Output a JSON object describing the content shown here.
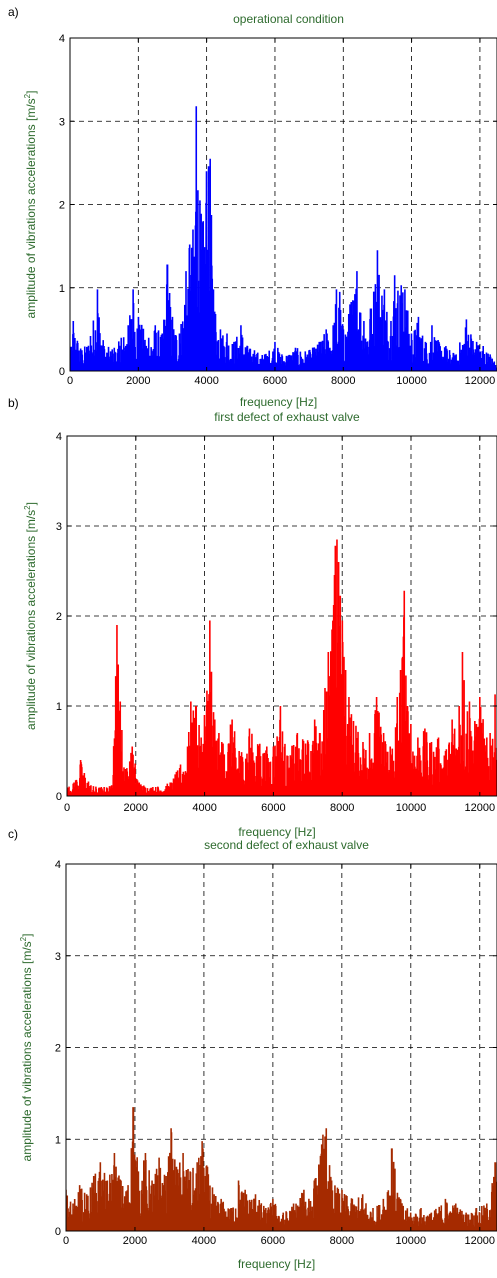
{
  "colors": {
    "text": "#2e6b2e",
    "grid": "#000000"
  },
  "chart_data": [
    {
      "type": "line",
      "panel_label": "a)",
      "title": "operational condition",
      "xlabel": "frequency [Hz]",
      "ylabel": "amplitude of vibrations accelerations [m/s",
      "ylabel_sup": "2",
      "ylabel_end": "]",
      "xlim": [
        0,
        12500
      ],
      "ylim": [
        0,
        4
      ],
      "xticks": [
        "0",
        "2000",
        "4000",
        "6000",
        "8000",
        "10000",
        "12000"
      ],
      "yticks": [
        "0",
        "1",
        "2",
        "3",
        "4"
      ],
      "grid": true,
      "series": [
        {
          "color": "#0000ff",
          "peaks": [
            [
              0,
              0.12
            ],
            [
              100,
              0.6
            ],
            [
              350,
              0.25
            ],
            [
              600,
              0.42
            ],
            [
              800,
              0.98
            ],
            [
              1000,
              0.3
            ],
            [
              1300,
              0.28
            ],
            [
              1500,
              0.4
            ],
            [
              1700,
              0.55
            ],
            [
              1850,
              0.98
            ],
            [
              2000,
              0.65
            ],
            [
              2300,
              0.4
            ],
            [
              2500,
              0.55
            ],
            [
              2700,
              0.45
            ],
            [
              2850,
              1.28
            ],
            [
              3000,
              0.65
            ],
            [
              3200,
              0.45
            ],
            [
              3400,
              1.2
            ],
            [
              3500,
              1.52
            ],
            [
              3600,
              1.7
            ],
            [
              3700,
              3.18
            ],
            [
              3800,
              2.05
            ],
            [
              3900,
              1.8
            ],
            [
              4000,
              2.4
            ],
            [
              4100,
              2.55
            ],
            [
              4200,
              0.98
            ],
            [
              4400,
              0.5
            ],
            [
              4600,
              0.45
            ],
            [
              4800,
              0.35
            ],
            [
              5000,
              0.55
            ],
            [
              5200,
              0.3
            ],
            [
              5400,
              0.25
            ],
            [
              5700,
              0.2
            ],
            [
              6000,
              0.35
            ],
            [
              6200,
              0.2
            ],
            [
              6600,
              0.28
            ],
            [
              7000,
              0.25
            ],
            [
              7300,
              0.35
            ],
            [
              7500,
              0.5
            ],
            [
              7700,
              0.55
            ],
            [
              7800,
              0.98
            ],
            [
              7900,
              0.95
            ],
            [
              8000,
              0.5
            ],
            [
              8200,
              0.8
            ],
            [
              8400,
              1.2
            ],
            [
              8600,
              0.6
            ],
            [
              8800,
              0.75
            ],
            [
              9000,
              1.45
            ],
            [
              9200,
              0.98
            ],
            [
              9400,
              0.6
            ],
            [
              9500,
              1.15
            ],
            [
              9700,
              1.03
            ],
            [
              9800,
              0.98
            ],
            [
              10000,
              0.45
            ],
            [
              10200,
              0.65
            ],
            [
              10400,
              0.35
            ],
            [
              10600,
              0.55
            ],
            [
              10800,
              0.35
            ],
            [
              11000,
              0.3
            ],
            [
              11300,
              0.2
            ],
            [
              11600,
              0.62
            ],
            [
              11900,
              0.35
            ],
            [
              12100,
              0.3
            ],
            [
              12300,
              0.2
            ],
            [
              12500,
              0.1
            ]
          ]
        }
      ]
    },
    {
      "type": "line",
      "panel_label": "b)",
      "title": "first defect of exhaust valve",
      "xlabel": "frequency [Hz]",
      "ylabel": "amplitude of vibrations accelerations [m/s",
      "ylabel_sup": "2",
      "ylabel_end": "]",
      "xlim": [
        0,
        12500
      ],
      "ylim": [
        0,
        4
      ],
      "xticks": [
        "0",
        "2000",
        "4000",
        "6000",
        "8000",
        "10000",
        "12000"
      ],
      "yticks": [
        "0",
        "1",
        "2",
        "3",
        "4"
      ],
      "grid": true,
      "series": [
        {
          "color": "#ff0000",
          "peaks": [
            [
              0,
              0.1
            ],
            [
              200,
              0.15
            ],
            [
              400,
              0.4
            ],
            [
              700,
              0.12
            ],
            [
              1000,
              0.1
            ],
            [
              1300,
              0.12
            ],
            [
              1450,
              1.9
            ],
            [
              1550,
              1.05
            ],
            [
              1700,
              0.3
            ],
            [
              1900,
              0.55
            ],
            [
              2100,
              0.15
            ],
            [
              2500,
              0.1
            ],
            [
              3000,
              0.15
            ],
            [
              3300,
              0.35
            ],
            [
              3500,
              0.55
            ],
            [
              3600,
              1.05
            ],
            [
              3750,
              1.0
            ],
            [
              3900,
              0.65
            ],
            [
              4000,
              0.9
            ],
            [
              4150,
              1.95
            ],
            [
              4200,
              1.38
            ],
            [
              4300,
              0.85
            ],
            [
              4500,
              0.6
            ],
            [
              4800,
              0.85
            ],
            [
              5000,
              0.5
            ],
            [
              5300,
              0.75
            ],
            [
              5600,
              0.58
            ],
            [
              6000,
              0.55
            ],
            [
              6200,
              1.0
            ],
            [
              6400,
              0.45
            ],
            [
              6700,
              0.7
            ],
            [
              7000,
              0.62
            ],
            [
              7200,
              0.85
            ],
            [
              7350,
              0.7
            ],
            [
              7500,
              1.2
            ],
            [
              7600,
              1.6
            ],
            [
              7700,
              1.85
            ],
            [
              7800,
              2.78
            ],
            [
              7850,
              2.85
            ],
            [
              7900,
              2.6
            ],
            [
              8000,
              1.95
            ],
            [
              8100,
              1.4
            ],
            [
              8200,
              1.1
            ],
            [
              8400,
              0.78
            ],
            [
              8600,
              0.6
            ],
            [
              8800,
              0.7
            ],
            [
              9000,
              1.1
            ],
            [
              9200,
              0.7
            ],
            [
              9400,
              0.55
            ],
            [
              9600,
              1.1
            ],
            [
              9700,
              1.4
            ],
            [
              9800,
              2.28
            ],
            [
              9900,
              1.0
            ],
            [
              10000,
              0.8
            ],
            [
              10200,
              0.65
            ],
            [
              10400,
              0.75
            ],
            [
              10600,
              0.6
            ],
            [
              10800,
              0.65
            ],
            [
              11000,
              0.5
            ],
            [
              11200,
              0.85
            ],
            [
              11400,
              1.0
            ],
            [
              11500,
              1.6
            ],
            [
              11700,
              1.05
            ],
            [
              11900,
              0.8
            ],
            [
              12000,
              1.1
            ],
            [
              12200,
              0.65
            ],
            [
              12300,
              0.7
            ],
            [
              12500,
              1.3
            ]
          ]
        }
      ]
    },
    {
      "type": "line",
      "panel_label": "c)",
      "title": "second defect of exhaust valve",
      "xlabel": "frequency [Hz]",
      "ylabel": "amplitude of vibrations accelerations [m/s",
      "ylabel_sup": "2",
      "ylabel_end": "]",
      "xlim": [
        0,
        12500
      ],
      "ylim": [
        0,
        4
      ],
      "xticks": [
        "0",
        "2000",
        "4000",
        "6000",
        "8000",
        "10000",
        "12000"
      ],
      "yticks": [
        "0",
        "1",
        "2",
        "3",
        "4"
      ],
      "grid": true,
      "series": [
        {
          "color": "#a52a00",
          "peaks": [
            [
              0,
              0.45
            ],
            [
              200,
              0.3
            ],
            [
              400,
              0.5
            ],
            [
              600,
              0.4
            ],
            [
              800,
              0.6
            ],
            [
              1000,
              0.75
            ],
            [
              1200,
              0.55
            ],
            [
              1400,
              0.85
            ],
            [
              1600,
              0.55
            ],
            [
              1800,
              0.5
            ],
            [
              1950,
              1.35
            ],
            [
              2100,
              0.65
            ],
            [
              2300,
              0.85
            ],
            [
              2500,
              0.55
            ],
            [
              2700,
              0.8
            ],
            [
              2900,
              0.6
            ],
            [
              3050,
              1.12
            ],
            [
              3200,
              0.7
            ],
            [
              3400,
              0.85
            ],
            [
              3600,
              0.65
            ],
            [
              3800,
              0.75
            ],
            [
              3950,
              0.98
            ],
            [
              4100,
              0.7
            ],
            [
              4300,
              0.4
            ],
            [
              4500,
              0.35
            ],
            [
              4800,
              0.25
            ],
            [
              5000,
              0.55
            ],
            [
              5200,
              0.45
            ],
            [
              5500,
              0.4
            ],
            [
              5800,
              0.25
            ],
            [
              6000,
              0.35
            ],
            [
              6300,
              0.2
            ],
            [
              6600,
              0.3
            ],
            [
              6900,
              0.45
            ],
            [
              7200,
              0.55
            ],
            [
              7450,
              1.05
            ],
            [
              7550,
              1.12
            ],
            [
              7700,
              0.55
            ],
            [
              8000,
              0.45
            ],
            [
              8300,
              0.35
            ],
            [
              8600,
              0.4
            ],
            [
              8900,
              0.25
            ],
            [
              9200,
              0.35
            ],
            [
              9450,
              0.9
            ],
            [
              9700,
              0.35
            ],
            [
              10000,
              0.2
            ],
            [
              10300,
              0.25
            ],
            [
              10600,
              0.2
            ],
            [
              11000,
              0.35
            ],
            [
              11300,
              0.3
            ],
            [
              11600,
              0.2
            ],
            [
              11900,
              0.25
            ],
            [
              12200,
              0.3
            ],
            [
              12450,
              0.75
            ],
            [
              12500,
              0.6
            ]
          ]
        }
      ]
    }
  ]
}
